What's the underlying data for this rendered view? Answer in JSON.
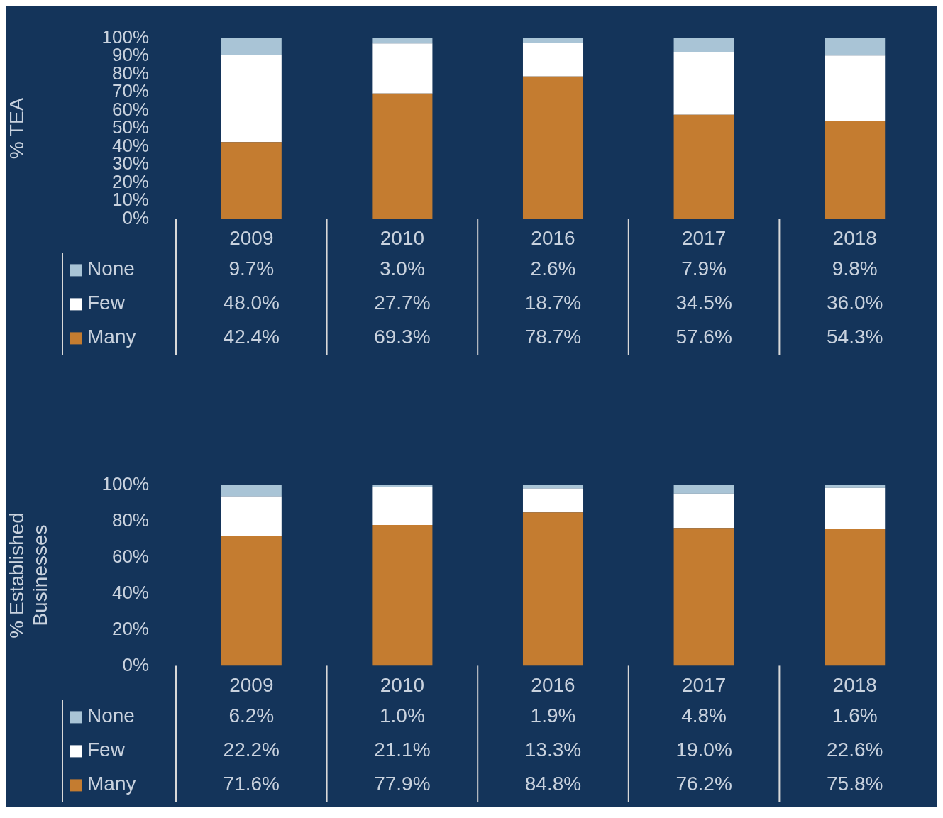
{
  "chart_data": [
    {
      "type": "bar",
      "stacked": true,
      "ylabel": "% TEA",
      "categories": [
        "2009",
        "2010",
        "2016",
        "2017",
        "2018"
      ],
      "ylim": [
        0,
        100
      ],
      "yticks": [
        {
          "value": 0,
          "label": "0%"
        },
        {
          "value": 10,
          "label": "10%"
        },
        {
          "value": 20,
          "label": "20%"
        },
        {
          "value": 30,
          "label": "30%"
        },
        {
          "value": 40,
          "label": "40%"
        },
        {
          "value": 50,
          "label": "50%"
        },
        {
          "value": 60,
          "label": "60%"
        },
        {
          "value": 70,
          "label": "70%"
        },
        {
          "value": 80,
          "label": "80%"
        },
        {
          "value": 90,
          "label": "90%"
        },
        {
          "value": 100,
          "label": "100%"
        }
      ],
      "legend": "bottom",
      "grid": false,
      "series": [
        {
          "name": "Many",
          "color": "#c47c30",
          "values": [
            42.4,
            69.3,
            78.7,
            57.6,
            54.3
          ],
          "value_labels": [
            "42.4%",
            "69.3%",
            "78.7%",
            "57.6%",
            "54.3%"
          ]
        },
        {
          "name": "Few",
          "color": "#ffffff",
          "values": [
            48.0,
            27.7,
            18.7,
            34.5,
            36.0
          ],
          "value_labels": [
            "48.0%",
            "27.7%",
            "18.7%",
            "34.5%",
            "36.0%"
          ]
        },
        {
          "name": "None",
          "color": "#a9c4d6",
          "values": [
            9.7,
            3.0,
            2.6,
            7.9,
            9.8
          ],
          "value_labels": [
            "9.7%",
            "3.0%",
            "2.6%",
            "7.9%",
            "9.8%"
          ]
        }
      ]
    },
    {
      "type": "bar",
      "stacked": true,
      "ylabel": "% Established Businesses",
      "categories": [
        "2009",
        "2010",
        "2016",
        "2017",
        "2018"
      ],
      "ylim": [
        0,
        100
      ],
      "yticks": [
        {
          "value": 0,
          "label": "0%"
        },
        {
          "value": 20,
          "label": "20%"
        },
        {
          "value": 40,
          "label": "40%"
        },
        {
          "value": 60,
          "label": "60%"
        },
        {
          "value": 80,
          "label": "80%"
        },
        {
          "value": 100,
          "label": "100%"
        }
      ],
      "legend": "bottom",
      "grid": false,
      "series": [
        {
          "name": "Many",
          "color": "#c47c30",
          "values": [
            71.6,
            77.9,
            84.8,
            76.2,
            75.8
          ],
          "value_labels": [
            "71.6%",
            "77.9%",
            "84.8%",
            "76.2%",
            "75.8%"
          ]
        },
        {
          "name": "Few",
          "color": "#ffffff",
          "values": [
            22.2,
            21.1,
            13.3,
            19.0,
            22.6
          ],
          "value_labels": [
            "22.2%",
            "21.1%",
            "13.3%",
            "19.0%",
            "22.6%"
          ]
        },
        {
          "name": "None",
          "color": "#a9c4d6",
          "values": [
            6.2,
            1.0,
            1.9,
            4.8,
            1.6
          ],
          "value_labels": [
            "6.2%",
            "1.0%",
            "1.9%",
            "4.8%",
            "1.6%"
          ]
        }
      ]
    }
  ]
}
